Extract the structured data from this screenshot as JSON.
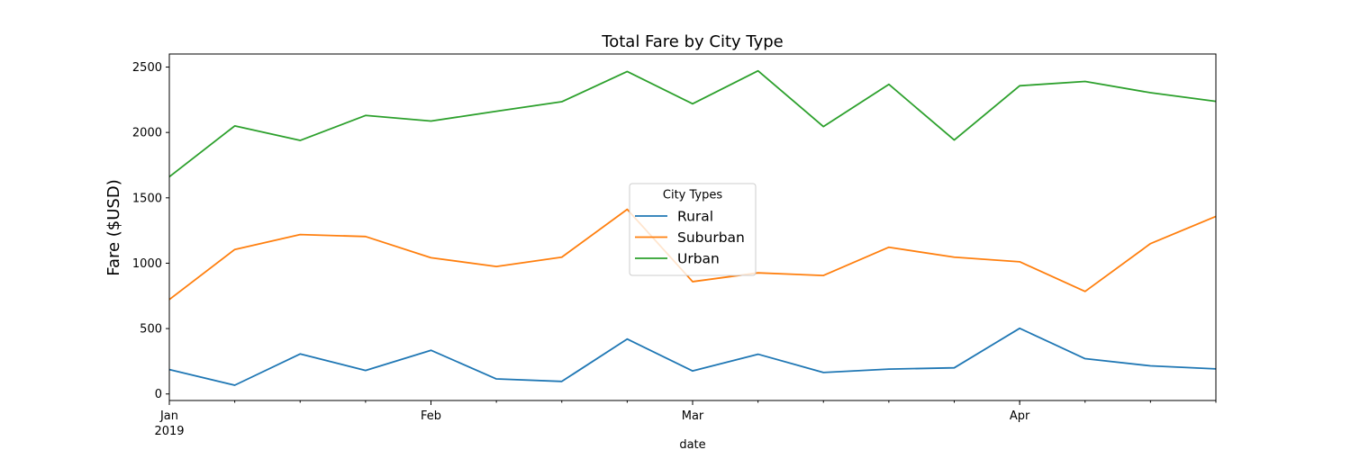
{
  "chart_data": {
    "type": "line",
    "title": "Total Fare by City Type",
    "xlabel": "date",
    "ylabel": "Fare ($USD)",
    "ylim": [
      -50,
      2600
    ],
    "yticks": [
      0,
      500,
      1000,
      1500,
      2000,
      2500
    ],
    "x": [
      "2019-01-06",
      "2019-01-13",
      "2019-01-20",
      "2019-01-27",
      "2019-02-03",
      "2019-02-10",
      "2019-02-17",
      "2019-02-24",
      "2019-03-03",
      "2019-03-10",
      "2019-03-17",
      "2019-03-24",
      "2019-03-31",
      "2019-04-07",
      "2019-04-14",
      "2019-04-21",
      "2019-04-28"
    ],
    "major_ticks": [
      {
        "date": "2019-01-06",
        "label": "Jan",
        "sublabel": "2019"
      },
      {
        "date": "2019-02-03",
        "label": "Feb",
        "sublabel": ""
      },
      {
        "date": "2019-03-03",
        "label": "Mar",
        "sublabel": ""
      },
      {
        "date": "2019-04-07",
        "label": "Apr",
        "sublabel": ""
      }
    ],
    "legend": {
      "title": "City Types",
      "placement": "center"
    },
    "grid": false,
    "series": [
      {
        "name": "Rural",
        "color": "#1f77b4",
        "values": [
          187,
          67,
          306,
          180,
          334,
          115,
          96,
          420,
          176,
          304,
          164,
          190,
          200,
          502,
          270,
          215,
          192
        ]
      },
      {
        "name": "Suburban",
        "color": "#ff7f0e",
        "values": [
          722,
          1105,
          1219,
          1204,
          1042,
          975,
          1046,
          1412,
          859,
          926,
          906,
          1122,
          1046,
          1011,
          784,
          1150,
          1358
        ]
      },
      {
        "name": "Urban",
        "color": "#2ca02c",
        "values": [
          1661,
          2050,
          1939,
          2130,
          2087,
          2162,
          2235,
          2466,
          2219,
          2471,
          2045,
          2368,
          1942,
          2357,
          2390,
          2304,
          2238
        ]
      }
    ]
  }
}
